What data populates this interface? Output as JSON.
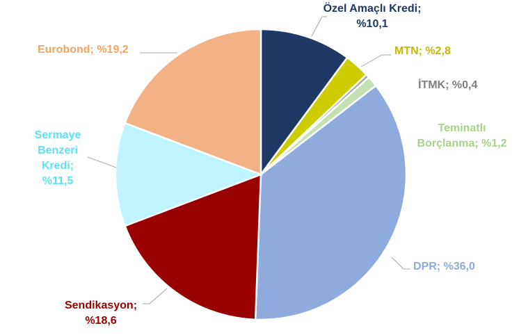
{
  "chart_data": {
    "type": "pie",
    "title": "",
    "start_angle_deg": 0,
    "direction": "clockwise",
    "slices": [
      {
        "name": "Özel Amaçlı Kredi",
        "value": 10.1,
        "value_label": "%10,1",
        "label_lines": [
          "Özel Amaçlı Kredi;",
          "%10,1"
        ],
        "color": "#1F3864",
        "label_color": "#1F3864"
      },
      {
        "name": "MTN",
        "value": 2.8,
        "value_label": "%2,8",
        "label_lines": [
          "MTN; %2,8"
        ],
        "color": "#CCCC00",
        "label_color": "#C4B800"
      },
      {
        "name": "İTMK",
        "value": 0.4,
        "value_label": "%0,4",
        "label_lines": [
          "İTMK; %0,4"
        ],
        "color": "#A6A6A6",
        "label_color": "#7F7F7F"
      },
      {
        "name": "Teminatlı Borçlanma",
        "value": 1.2,
        "value_label": "%1,2",
        "label_lines": [
          "Teminatlı",
          "Borçlanma; %1,2"
        ],
        "color": "#C5E0B4",
        "label_color": "#A9D18E"
      },
      {
        "name": "DPR",
        "value": 36.0,
        "value_label": "%36,0",
        "label_lines": [
          "DPR; %36,0"
        ],
        "color": "#8FAADC",
        "label_color": "#8FAADC"
      },
      {
        "name": "Sendikasyon",
        "value": 18.6,
        "value_label": "%18,6",
        "label_lines": [
          "Sendikasyon;",
          "%18,6"
        ],
        "color": "#990000",
        "label_color": "#990000"
      },
      {
        "name": "Sermaye Benzeri Kredi",
        "value": 11.5,
        "value_label": "%11,5",
        "label_lines": [
          "Sermaye",
          "Benzeri",
          "Kredi;",
          "%11,5"
        ],
        "color": "#BDF4FF",
        "label_color": "#5CE1F5"
      },
      {
        "name": "Eurobond",
        "value": 19.2,
        "value_label": "%19,2",
        "label_lines": [
          "Eurobond; %19,2"
        ],
        "color": "#F4B183",
        "label_color": "#F4A460"
      }
    ]
  }
}
